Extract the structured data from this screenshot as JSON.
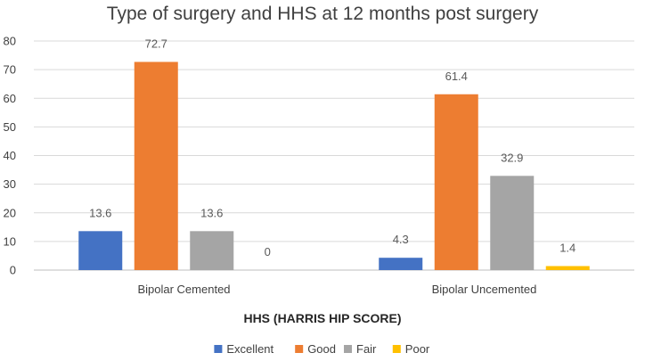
{
  "chart_data": {
    "type": "bar",
    "title": "Type of surgery and HHS at 12 months post surgery",
    "xlabel": "HHS (HARRIS HIP SCORE)",
    "ylabel": "",
    "ylim": [
      0,
      80
    ],
    "yticks": [
      0,
      10,
      20,
      30,
      40,
      50,
      60,
      70,
      80
    ],
    "categories": [
      "Bipolar Cemented",
      "Bipolar Uncemented"
    ],
    "series": [
      {
        "name": "Excellent",
        "color": "#4472c4",
        "values": [
          13.6,
          4.3
        ]
      },
      {
        "name": "Good",
        "color": "#ed7d31",
        "values": [
          72.7,
          61.4
        ]
      },
      {
        "name": "Fair",
        "color": "#a5a5a5",
        "values": [
          13.6,
          32.9
        ]
      },
      {
        "name": "Poor",
        "color": "#ffc000",
        "values": [
          0,
          1.4
        ]
      }
    ],
    "grid": true,
    "legend_position": "bottom"
  }
}
